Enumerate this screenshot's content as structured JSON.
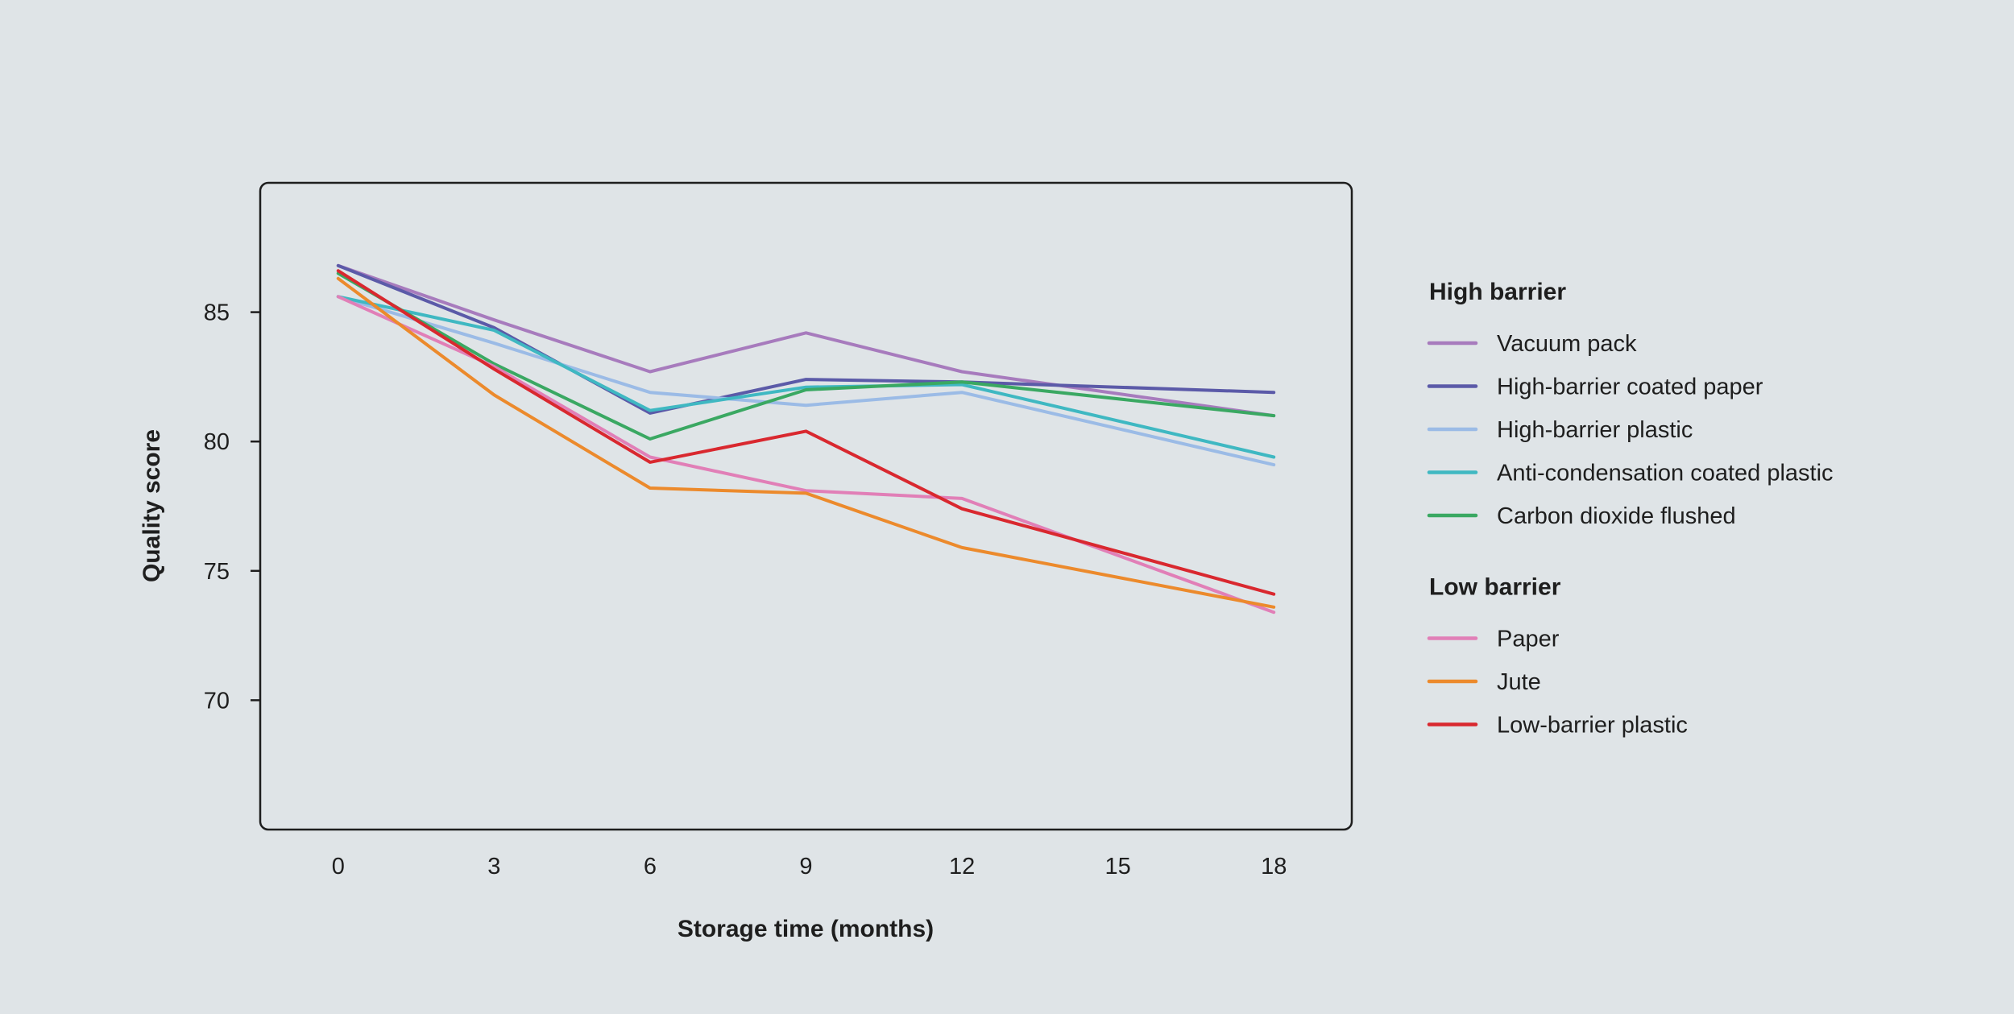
{
  "chart_data": {
    "type": "line",
    "title": "",
    "xlabel": "Storage time (months)",
    "ylabel": "Quality score",
    "x": [
      0,
      3,
      6,
      9,
      12,
      15,
      18
    ],
    "xlim": [
      -1.5,
      19.5
    ],
    "ylim": [
      65,
      90
    ],
    "yticks": [
      70,
      75,
      80,
      85
    ],
    "grid": false,
    "legend_position": "right",
    "legend_groups": [
      {
        "heading": "High barrier",
        "series": [
          0,
          1,
          2,
          3,
          4
        ]
      },
      {
        "heading": "Low barrier",
        "series": [
          5,
          6,
          7
        ]
      }
    ],
    "series": [
      {
        "name": "Vacuum pack",
        "color": "#a77bbd",
        "x": [
          0,
          3,
          6,
          9,
          12,
          18
        ],
        "values": [
          86.8,
          84.7,
          82.7,
          84.2,
          82.7,
          81.0
        ]
      },
      {
        "name": "High-barrier coated paper",
        "color": "#5b5aa8",
        "x": [
          0,
          3,
          6,
          9,
          12,
          18
        ],
        "values": [
          86.8,
          84.4,
          81.1,
          82.4,
          82.3,
          81.9
        ]
      },
      {
        "name": "High-barrier plastic",
        "color": "#9bbbe6",
        "x": [
          0,
          3,
          6,
          9,
          12,
          18
        ],
        "values": [
          85.6,
          83.8,
          81.9,
          81.4,
          81.9,
          79.1
        ]
      },
      {
        "name": "Anti-condensation coated plastic",
        "color": "#3fb8c2",
        "x": [
          0,
          3,
          6,
          9,
          12,
          18
        ],
        "values": [
          85.6,
          84.3,
          81.2,
          82.1,
          82.2,
          79.4
        ]
      },
      {
        "name": "Carbon dioxide flushed",
        "color": "#3aa862",
        "x": [
          0,
          3,
          6,
          9,
          12,
          18
        ],
        "values": [
          86.5,
          83.0,
          80.1,
          82.0,
          82.3,
          81.0
        ]
      },
      {
        "name": "Paper",
        "color": "#e17fb7",
        "x": [
          0,
          3,
          6,
          9,
          12,
          18
        ],
        "values": [
          85.6,
          82.9,
          79.4,
          78.1,
          77.8,
          73.4
        ]
      },
      {
        "name": "Jute",
        "color": "#ec8a2c",
        "x": [
          0,
          3,
          6,
          9,
          12,
          18
        ],
        "values": [
          86.3,
          81.8,
          78.2,
          78.0,
          75.9,
          73.6
        ]
      },
      {
        "name": "Low-barrier plastic",
        "color": "#d9282f",
        "x": [
          0,
          3,
          6,
          9,
          12,
          18
        ],
        "values": [
          86.6,
          82.8,
          79.2,
          80.4,
          77.4,
          74.1
        ]
      }
    ]
  }
}
